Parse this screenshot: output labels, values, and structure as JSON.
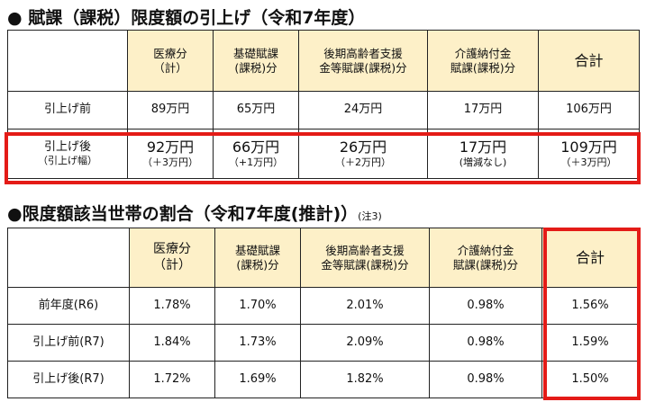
{
  "section1": {
    "title": "● 賦課（課税）限度額の引上げ（令和7年度）",
    "headers": [
      {
        "l1": "医療分",
        "l2": "（計）"
      },
      {
        "l1": "基礎賦課",
        "l2": "(課税)分"
      },
      {
        "l1": "後期高齢者支援",
        "l2": "金等賦課(課税)分"
      },
      {
        "l1": "介護納付金",
        "l2": "賦課(課税)分"
      },
      {
        "l1": "合計",
        "l2": ""
      }
    ],
    "rows": [
      {
        "label": "引上げ前",
        "label_sub": "",
        "values": [
          "89万円",
          "65万円",
          "24万円",
          "17万円",
          "106万円"
        ],
        "subs": [
          "",
          "",
          "",
          "",
          ""
        ]
      },
      {
        "label": "引上げ後",
        "label_sub": "（引上げ幅）",
        "values": [
          "92万円",
          "66万円",
          "26万円",
          "17万円",
          "109万円"
        ],
        "subs": [
          "（＋3万円）",
          "（+1万円）",
          "（＋2万円）",
          "(増減なし)",
          "（＋3万円）"
        ]
      }
    ]
  },
  "section2": {
    "title": "●限度額該当世帯の割合（令和7年度(推計)）",
    "note": "(注3)",
    "headers": [
      {
        "l1": "医療分",
        "l2": "（計）"
      },
      {
        "l1": "基礎賦課",
        "l2": "(課税)分"
      },
      {
        "l1": "後期高齢者支援",
        "l2": "金等賦課(課税)分"
      },
      {
        "l1": "介護納付金",
        "l2": "賦課(課税)分"
      },
      {
        "l1": "合計",
        "l2": ""
      }
    ],
    "rows": [
      {
        "label": "前年度(R6)",
        "values": [
          "1.78%",
          "1.70%",
          "2.01%",
          "0.98%",
          "1.56%"
        ]
      },
      {
        "label": "引上げ前(R7)",
        "values": [
          "1.84%",
          "1.73%",
          "2.09%",
          "0.98%",
          "1.59%"
        ]
      },
      {
        "label": "引上げ後(R7)",
        "values": [
          "1.72%",
          "1.69%",
          "1.82%",
          "0.98%",
          "1.50%"
        ]
      }
    ]
  },
  "colors": {
    "header_bg": "#fdf0c8",
    "highlight": "#e41b17",
    "border": "#222222"
  }
}
